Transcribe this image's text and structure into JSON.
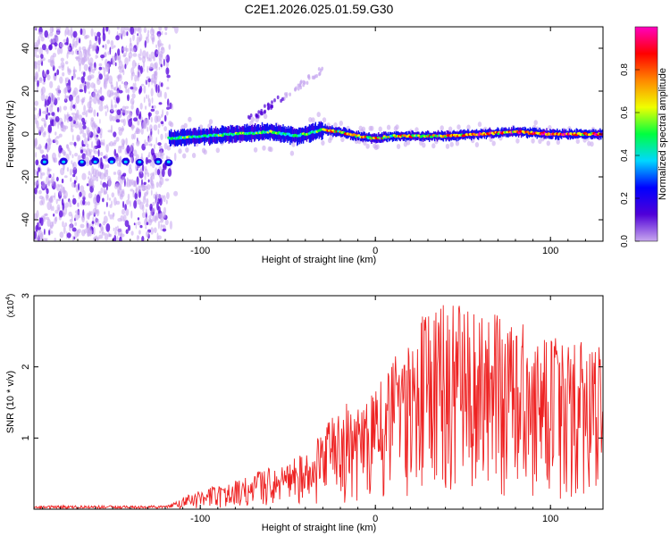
{
  "page_title": "C2E1.2026.025.01.59.G30",
  "chart_data": [
    {
      "type": "heatmap",
      "name": "spectrogram",
      "xlabel": "Height of straight line (km)",
      "ylabel": "Frequency (Hz)",
      "xlim": [
        -195,
        130
      ],
      "ylim": [
        -50,
        50
      ],
      "xticks": [
        -100,
        0,
        100
      ],
      "yticks": [
        -40,
        -20,
        0,
        20,
        40
      ],
      "colorbar": {
        "label": "Normalized spectral amplitude",
        "range": [
          0,
          1
        ],
        "ticks": [
          "0.0",
          "0.2",
          "0.4",
          "0.6",
          "0.8"
        ],
        "colors": [
          "#c8a8ee",
          "#5000d8",
          "#0000ff",
          "#00d8ff",
          "#00ff40",
          "#f0ff00",
          "#ff8800",
          "#ff0000",
          "#ff00c0"
        ]
      },
      "noise_region": [
        -195,
        -118
      ],
      "weak_tone": {
        "x": [
          -195,
          -118
        ],
        "freq": -13
      },
      "ridge": {
        "x": [
          -118,
          -100,
          -80,
          -60,
          -45,
          -30,
          -20,
          -10,
          0,
          10,
          20,
          40,
          60,
          80,
          100,
          130
        ],
        "freq": [
          -2,
          -1,
          0,
          1,
          -1,
          2,
          1,
          -1,
          -2,
          -1,
          -1,
          -1,
          0,
          1,
          0,
          0
        ]
      },
      "chirp": {
        "x": [
          -75,
          -30
        ],
        "freq": [
          5,
          30
        ]
      }
    },
    {
      "type": "line",
      "name": "snr",
      "xlabel": "Height of straight line (km)",
      "ylabel": "SNR (10 * v/v)",
      "scale_label": "(x10",
      "scale_exponent": "4",
      "xlim": [
        -195,
        130
      ],
      "ylim": [
        0,
        3
      ],
      "xticks": [
        -100,
        0,
        100
      ],
      "yticks": [
        1,
        2,
        3
      ],
      "color": "#ee2222",
      "envelope": {
        "x": [
          -195,
          -120,
          -100,
          -80,
          -60,
          -40,
          -20,
          0,
          20,
          40,
          60,
          80,
          100,
          130
        ],
        "max": [
          0.05,
          0.05,
          0.28,
          0.4,
          0.6,
          0.8,
          1.45,
          1.7,
          2.6,
          2.95,
          2.8,
          2.7,
          2.5,
          2.3
        ]
      }
    }
  ]
}
